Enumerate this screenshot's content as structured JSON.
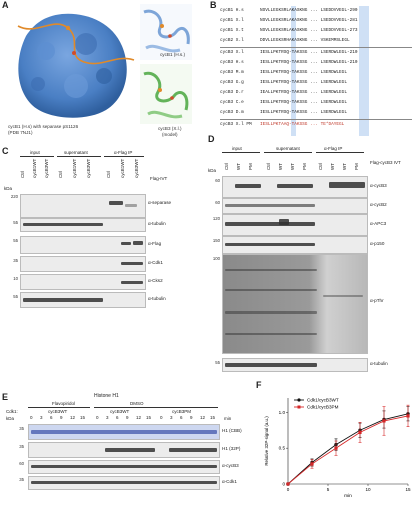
{
  "panels": {
    "A": "A",
    "B": "B",
    "C": "C",
    "D": "D",
    "E": "E",
    "F": "F"
  },
  "panelA": {
    "caption_left_1": "cycB1 (H.s) with separase pS1126",
    "caption_left_2": "(PDB 7NJ1)",
    "caption_right_1": "cycB3 (X.l.)",
    "caption_right_2": "(model)",
    "top_right_label": "cycB1 (H.s.)"
  },
  "panelB": {
    "rows": [
      {
        "name": "cycB1 H.s",
        "seq": "NSVLLEGKSRLAKASKNG ... LSEDDVVEGL-290"
      },
      {
        "name": "cycB1 X.l",
        "seq": "NSVLLEGKSRLAKASKNG ... LSEDDVVEGL-281"
      },
      {
        "name": "cycB1 X.t",
        "seq": "NSVLLEGKSRLAKASKNG ... LSEDDVVEGL-273"
      },
      {
        "name": "cycB2 X.l",
        "seq": "DDVLLEGKSRHAKASKNG ... VSKEMMSLEGL"
      },
      {
        "name": "cycB3 X.l",
        "seq": "IESLLPKTRSQ-TAKSSG ... LSERDWLEGL-210"
      },
      {
        "name": "cycB3 H.s",
        "seq": "IESLLPKTRSQ-TAKSSG ... LSERDWLEGL-210"
      },
      {
        "name": "cycB3 M.m",
        "seq": "IESLLPKTRSQ-TAKSSG ... LSERDWLEGL"
      },
      {
        "name": "cycB3 G.g",
        "seq": "IESLLPKTRSQ-TAKSSG ... LSERDWLEGL"
      },
      {
        "name": "cycB3 D.r",
        "seq": "IEALLPKTRSQ-TAKSSG ... LSERDWLEGL"
      },
      {
        "name": "cycB3 C.e",
        "seq": "IESLLPKTRSQ-TAKSSG ... LSERDWLEGL"
      },
      {
        "name": "cycB3 D.m",
        "seq": "IESLLPKTRSQ-TAKSSG ... LSERDWLEGL"
      },
      {
        "name": "cycB3 X.l PM",
        "seq": "IESLLPKTAAQ-TAKSSG ... TE*DAYEGL"
      }
    ]
  },
  "panelC": {
    "header_input": "input",
    "header_super": "supernatant",
    "header_ip": "α-Flag IP",
    "lanes": [
      "Ctrl",
      "cycB1WT",
      "cycB3WT",
      "Ctrl",
      "cycB1WT",
      "cycB3WT",
      "Ctrl",
      "cycB1WT",
      "cycB3WT"
    ],
    "ivt_label": "Flag-IVT",
    "kda": "kDa",
    "rows": [
      {
        "label": "α-separase",
        "marker": "220"
      },
      {
        "label": "α-tubulin",
        "marker": "55"
      },
      {
        "label": "α-Flag",
        "marker": "55"
      },
      {
        "label": "α-Cdk1",
        "marker": "35"
      },
      {
        "label": "α-Cks2",
        "marker": "10"
      },
      {
        "label": "α-tubulin",
        "marker": "55"
      }
    ]
  },
  "panelD": {
    "header_input": "input",
    "header_super": "supernatant",
    "header_ip": "α-Flag IP",
    "lanes": [
      "Ctrl",
      "WT",
      "PM",
      "Ctrl",
      "WT",
      "WT",
      "PM",
      "Ctrl",
      "WT",
      "WT",
      "PM"
    ],
    "right_header": "Flag-cycB3 IVT",
    "kda": "kDa",
    "rows": [
      {
        "label": "α-cycB3",
        "marker": "60"
      },
      {
        "label": "α-cycB2",
        "marker": "60"
      },
      {
        "label": "α-APC3",
        "marker": "120"
      },
      {
        "label": "α-p150",
        "marker": "150"
      },
      {
        "label": "α-pThr",
        "marker": "100"
      },
      {
        "label": "α-tubulin",
        "marker": "55"
      }
    ]
  },
  "panelE": {
    "title": "Histone H1",
    "cdk1_label": "Cdk1:",
    "group_flavo": "Flavopiridol",
    "group_dmso": "DMSO",
    "sub_1": "cycB3WT",
    "sub_2": "cycB3WT",
    "sub_3": "cycB3PM",
    "min_label": "min",
    "kda": "kDa",
    "times": [
      "0",
      "3",
      "6",
      "9",
      "12",
      "15",
      "0",
      "3",
      "6",
      "9",
      "12",
      "15",
      "0",
      "3",
      "6",
      "9",
      "12",
      "15"
    ],
    "rows": [
      {
        "label": "H1 (CBB)",
        "marker": "35"
      },
      {
        "label": "H1 (32P)",
        "marker": "35"
      },
      {
        "label": "α-cycB3",
        "marker": "60"
      },
      {
        "label": "α-Cdk1",
        "marker": "35"
      }
    ]
  },
  "chart_data": {
    "type": "line",
    "title": "",
    "xlabel": "min",
    "ylabel": "Relative 32P-signal (a.u.)",
    "xlim": [
      0,
      15
    ],
    "ylim": [
      0,
      1.2
    ],
    "xticks": [
      "0",
      "5",
      "10",
      "15"
    ],
    "yticks": [
      "0",
      "0.5",
      "1.0"
    ],
    "legend_position": "top-left",
    "series": [
      {
        "name": "Cdk1/cycB3WT",
        "color": "#111111",
        "marker": "circle",
        "x": [
          0,
          3,
          6,
          9,
          12,
          15
        ],
        "y": [
          0,
          0.3,
          0.55,
          0.75,
          0.9,
          0.98
        ],
        "err": [
          0,
          0.05,
          0.08,
          0.1,
          0.12,
          0.1
        ]
      },
      {
        "name": "Cdk1/cycB3PM",
        "color": "#d62728",
        "marker": "square",
        "x": [
          0,
          3,
          6,
          9,
          12,
          15
        ],
        "y": [
          0,
          0.28,
          0.5,
          0.72,
          0.88,
          0.95
        ],
        "err": [
          0,
          0.06,
          0.1,
          0.14,
          0.2,
          0.15
        ]
      }
    ]
  }
}
